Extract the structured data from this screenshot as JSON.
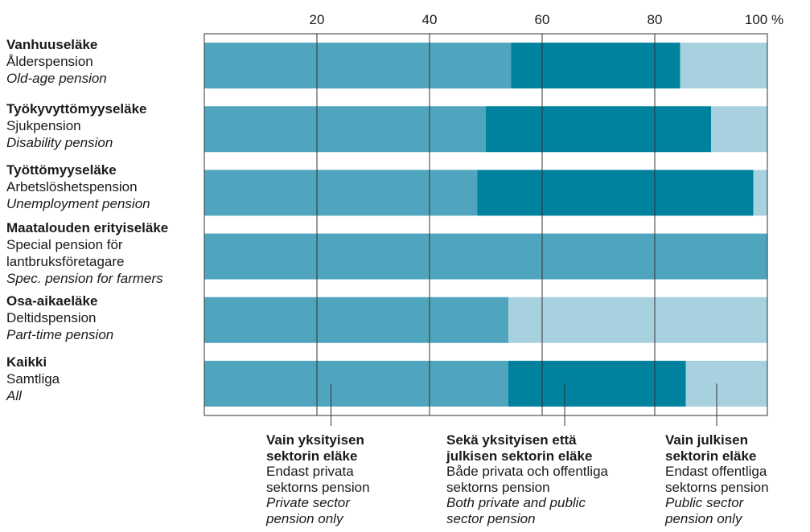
{
  "chart_data": {
    "type": "bar",
    "orientation": "horizontal",
    "stacked": true,
    "normalized": true,
    "xlim": [
      0,
      100
    ],
    "xticks": [
      "20",
      "40",
      "60",
      "80",
      "100 %"
    ],
    "grid": true,
    "categories": [
      {
        "fi": "Vanhuuseläke",
        "sv": "Ålderspension",
        "en": "Old-age pension"
      },
      {
        "fi": "Työkyvyttömyyseläke",
        "sv": "Sjukpension",
        "en": "Disability pension"
      },
      {
        "fi": "Työttömyyseläke",
        "sv": "Arbetslöshetspension",
        "en": "Unemployment pension"
      },
      {
        "fi": "Maatalouden erityiseläke",
        "sv": "Special pension för",
        "sv2": "lantbruksföretagare",
        "en": "Spec. pension for farmers"
      },
      {
        "fi": "Osa-aikaeläke",
        "sv": "Deltidspension",
        "en": "Part-time pension"
      },
      {
        "fi": "Kaikki",
        "sv": "Samtliga",
        "en": "All"
      }
    ],
    "series": [
      {
        "name": "Vain yksityisen sektorin eläke",
        "color": "#4fa5bd",
        "values": [
          54.5,
          50,
          48.5,
          100,
          54,
          54
        ]
      },
      {
        "name": "Sekä yksityisen että julkisen sektorin eläke",
        "color": "#00829e",
        "values": [
          30,
          40,
          49,
          0,
          0,
          31.5
        ]
      },
      {
        "name": "Vain julkisen sektorin eläke",
        "color": "#a8d1df",
        "values": [
          15.5,
          10,
          2.5,
          0,
          46,
          14.5
        ]
      }
    ],
    "legend": [
      {
        "fi1": "Vain yksityisen",
        "fi2": "sektorin eläke",
        "sv1": "Endast privata",
        "sv2": "sektorns pension",
        "en1": "Private sector",
        "en2": "pension only",
        "pointer_x": 22.5
      },
      {
        "fi1": "Sekä yksityisen että",
        "fi2": "julkisen sektorin eläke",
        "sv1": "Både privata och offentliga",
        "sv2": "sektorns pension",
        "en1": "Both private and public",
        "en2": "sector pension",
        "pointer_x": 64
      },
      {
        "fi1": "Vain julkisen",
        "fi2": "sektorin eläke",
        "sv1": "Endast offentliga",
        "sv2": "sektorns pension",
        "en1": "Public sector",
        "en2": "pension only",
        "pointer_x": 91
      }
    ]
  }
}
